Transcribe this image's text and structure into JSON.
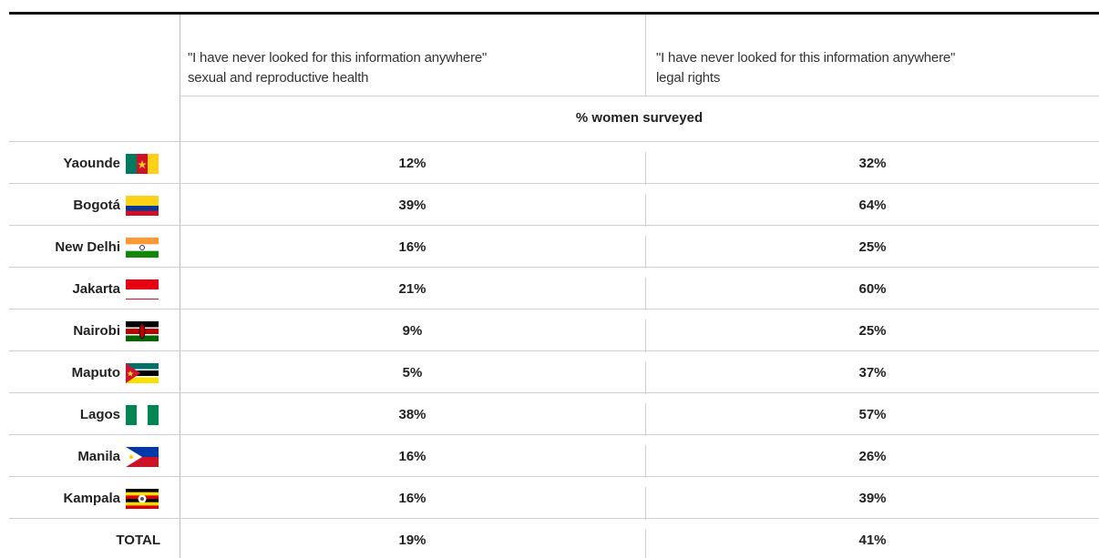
{
  "header": {
    "columns": [
      {
        "line1": "\"I have never looked for this information anywhere\"",
        "line2": "sexual and reproductive health"
      },
      {
        "line1": "\"I have never looked for this information anywhere\"",
        "line2": "legal rights"
      }
    ],
    "subheader": "% women surveyed"
  },
  "table": {
    "rows": [
      {
        "city": "Yaounde",
        "values": [
          "12%",
          "32%"
        ]
      },
      {
        "city": "Bogotá",
        "values": [
          "39%",
          "64%"
        ]
      },
      {
        "city": "New Delhi",
        "values": [
          "16%",
          "25%"
        ]
      },
      {
        "city": "Jakarta",
        "values": [
          "21%",
          "60%"
        ]
      },
      {
        "city": "Nairobi",
        "values": [
          "9%",
          "25%"
        ]
      },
      {
        "city": "Maputo",
        "values": [
          "5%",
          "37%"
        ]
      },
      {
        "city": "Lagos",
        "values": [
          "38%",
          "57%"
        ]
      },
      {
        "city": "Manila",
        "values": [
          "16%",
          "26%"
        ]
      },
      {
        "city": "Kampala",
        "values": [
          "16%",
          "39%"
        ]
      },
      {
        "city": "TOTAL",
        "values": [
          "19%",
          "41%"
        ]
      }
    ]
  }
}
